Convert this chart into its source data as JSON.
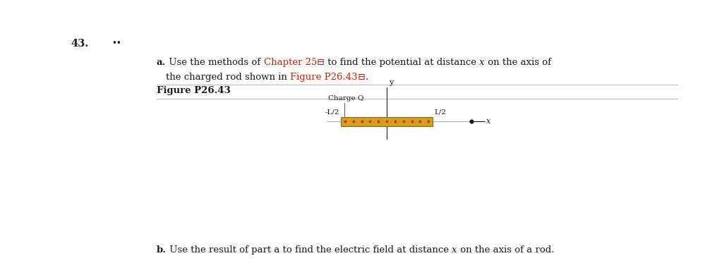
{
  "bg_color": "#ffffff",
  "problem_number": "43.",
  "bullet_dots": "••",
  "part_a_bold": "a.",
  "part_a_seg1": " Use the methods of ",
  "part_a_red1": "Chapter 25",
  "part_a_super1": "⊟",
  "part_a_seg2": " to find the potential at distance ",
  "part_a_x": "x",
  "part_a_seg3": " on the axis of",
  "part_a2_seg1": "the charged rod shown in ",
  "part_a2_red": "Figure P26.43",
  "part_a2_super": "⊟",
  "part_a2_end": ".",
  "figure_title": "Figure P26.43",
  "fig_charge_label": "Charge Q",
  "fig_neg_L2": "-L/2",
  "fig_L2": "L/2",
  "fig_x_label": "x",
  "fig_y_label": "y",
  "rod_fill": "#D4A020",
  "rod_edge": "#8B6914",
  "dot_color": "#CC2222",
  "part_b_bold": "b.",
  "part_b_seg1": " Use the result of part a to find the electric field at distance ",
  "part_b_x": "x",
  "part_b_seg2": " on the axis of a rod.",
  "sep_color": "#bbbbbb",
  "black": "#1a1a1a",
  "red": "#CC2200",
  "fs": 9.5
}
